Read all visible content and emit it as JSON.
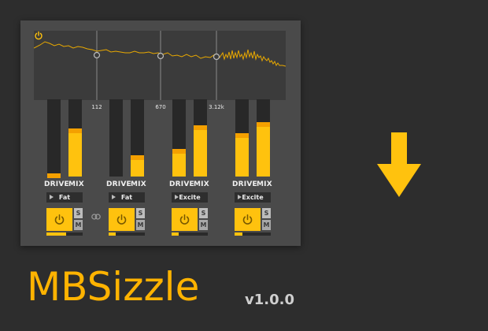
{
  "app": {
    "name": "MBSizzle",
    "version": "v1.0.0"
  },
  "colors": {
    "accent": "#ffc20e",
    "accent_dark": "#f4a000",
    "panel": "#4a4a4a",
    "background": "#2d2d2d",
    "display": "#3b3b3b",
    "spectrum_line": "#e8a800"
  },
  "spectrum": {
    "crossovers": [
      "112",
      "670",
      "3.12k"
    ],
    "crossover_values": [
      112,
      670,
      3120
    ],
    "power_icon": "power-icon"
  },
  "bands": [
    {
      "drive_label": "DRIVE",
      "mix_label": "MIX",
      "drive": 0.04,
      "mix": 0.62,
      "preset": "Fat",
      "solo": "S",
      "mute": "M",
      "output_level": 0.55
    },
    {
      "drive_label": "DRIVE",
      "mix_label": "MIX",
      "drive": 0.0,
      "mix": 0.28,
      "preset": "Fat",
      "solo": "S",
      "mute": "M",
      "output_level": 0.2
    },
    {
      "drive_label": "DRIVE",
      "mix_label": "MIX",
      "drive": 0.36,
      "mix": 0.66,
      "preset": "Excite",
      "solo": "S",
      "mute": "M",
      "output_level": 0.2
    },
    {
      "drive_label": "DRIVE",
      "mix_label": "MIX",
      "drive": 0.56,
      "mix": 0.7,
      "preset": "Excite",
      "solo": "S",
      "mute": "M",
      "output_level": 0.22
    }
  ],
  "icons": {
    "link": "link-icon",
    "download": "arrow-down-icon",
    "power": "power-icon",
    "preset_arrow": "play-triangle-icon"
  }
}
